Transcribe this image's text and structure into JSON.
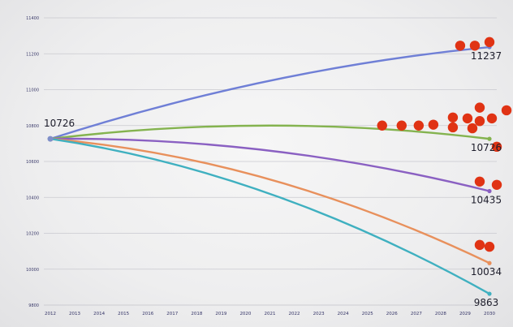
{
  "chart_data": {
    "type": "line",
    "title": "",
    "xlabel": "",
    "ylabel": "",
    "x": [
      2012,
      2013,
      2014,
      2015,
      2016,
      2017,
      2018,
      2019,
      2020,
      2021,
      2022,
      2023,
      2024,
      2025,
      2026,
      2027,
      2028,
      2029,
      2030
    ],
    "x_ticks": [
      "2012",
      "2013",
      "2014",
      "2015",
      "2016",
      "2017",
      "2018",
      "2019",
      "2020",
      "2021",
      "2022",
      "2023",
      "2024",
      "2025",
      "2026",
      "2027",
      "2028",
      "2029",
      "2030"
    ],
    "ylim": [
      9800,
      11400
    ],
    "y_ticks": [
      "11400",
      "11200",
      "11000",
      "10800",
      "10600",
      "10400",
      "10200",
      "10000",
      "9800"
    ],
    "grid": true,
    "series": [
      {
        "color": "#6f7fd6",
        "start": 10726,
        "mid": 11050,
        "end": 11237,
        "end_label": "11237"
      },
      {
        "color": "#84b34f",
        "start": 10726,
        "mid": 10800,
        "end": 10726,
        "end_label": "10726"
      },
      {
        "color": "#8a60c2",
        "start": 10726,
        "mid": 10660,
        "end": 10435,
        "end_label": "10435"
      },
      {
        "color": "#e8905c",
        "start": 10726,
        "mid": 10500,
        "end": 10034,
        "end_label": "10034"
      },
      {
        "color": "#3fb0c0",
        "start": 10726,
        "mid": 10420,
        "end": 9863,
        "end_label": "9863"
      }
    ],
    "start_label": "10726",
    "observations": [
      {
        "x": 2028.8,
        "y": 11245
      },
      {
        "x": 2029.4,
        "y": 11245
      },
      {
        "x": 2030.0,
        "y": 11265
      },
      {
        "x": 2025.6,
        "y": 10800
      },
      {
        "x": 2026.4,
        "y": 10800
      },
      {
        "x": 2027.1,
        "y": 10800
      },
      {
        "x": 2027.7,
        "y": 10805
      },
      {
        "x": 2028.5,
        "y": 10845
      },
      {
        "x": 2028.5,
        "y": 10790
      },
      {
        "x": 2029.1,
        "y": 10840
      },
      {
        "x": 2029.3,
        "y": 10785
      },
      {
        "x": 2029.6,
        "y": 10825
      },
      {
        "x": 2029.6,
        "y": 10900
      },
      {
        "x": 2030.1,
        "y": 10840
      },
      {
        "x": 2030.7,
        "y": 10885
      },
      {
        "x": 2030.3,
        "y": 10682
      },
      {
        "x": 2029.6,
        "y": 10488
      },
      {
        "x": 2030.3,
        "y": 10470
      },
      {
        "x": 2029.6,
        "y": 10135
      },
      {
        "x": 2030.0,
        "y": 10125
      }
    ],
    "observation_color": "#e03314"
  }
}
